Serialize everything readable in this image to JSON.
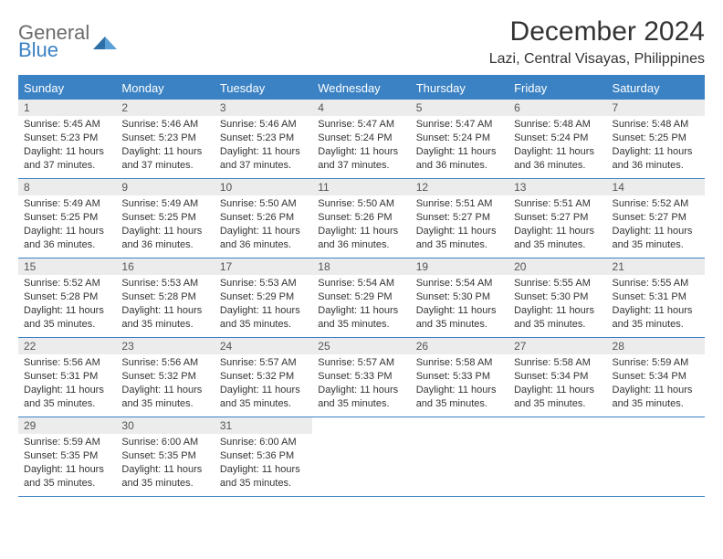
{
  "brand": {
    "general": "General",
    "blue": "Blue"
  },
  "title": "December 2024",
  "location": "Lazi, Central Visayas, Philippines",
  "weekday_header_bg": "#3b82c4",
  "border_color": "#3b82c4",
  "daynum_bg": "#ececec",
  "background": "#ffffff",
  "text_color": "#333333",
  "weekdays": [
    "Sunday",
    "Monday",
    "Tuesday",
    "Wednesday",
    "Thursday",
    "Friday",
    "Saturday"
  ],
  "weeks": [
    [
      {
        "n": "1",
        "sr": "Sunrise: 5:45 AM",
        "ss": "Sunset: 5:23 PM",
        "dl": "Daylight: 11 hours and 37 minutes."
      },
      {
        "n": "2",
        "sr": "Sunrise: 5:46 AM",
        "ss": "Sunset: 5:23 PM",
        "dl": "Daylight: 11 hours and 37 minutes."
      },
      {
        "n": "3",
        "sr": "Sunrise: 5:46 AM",
        "ss": "Sunset: 5:23 PM",
        "dl": "Daylight: 11 hours and 37 minutes."
      },
      {
        "n": "4",
        "sr": "Sunrise: 5:47 AM",
        "ss": "Sunset: 5:24 PM",
        "dl": "Daylight: 11 hours and 37 minutes."
      },
      {
        "n": "5",
        "sr": "Sunrise: 5:47 AM",
        "ss": "Sunset: 5:24 PM",
        "dl": "Daylight: 11 hours and 36 minutes."
      },
      {
        "n": "6",
        "sr": "Sunrise: 5:48 AM",
        "ss": "Sunset: 5:24 PM",
        "dl": "Daylight: 11 hours and 36 minutes."
      },
      {
        "n": "7",
        "sr": "Sunrise: 5:48 AM",
        "ss": "Sunset: 5:25 PM",
        "dl": "Daylight: 11 hours and 36 minutes."
      }
    ],
    [
      {
        "n": "8",
        "sr": "Sunrise: 5:49 AM",
        "ss": "Sunset: 5:25 PM",
        "dl": "Daylight: 11 hours and 36 minutes."
      },
      {
        "n": "9",
        "sr": "Sunrise: 5:49 AM",
        "ss": "Sunset: 5:25 PM",
        "dl": "Daylight: 11 hours and 36 minutes."
      },
      {
        "n": "10",
        "sr": "Sunrise: 5:50 AM",
        "ss": "Sunset: 5:26 PM",
        "dl": "Daylight: 11 hours and 36 minutes."
      },
      {
        "n": "11",
        "sr": "Sunrise: 5:50 AM",
        "ss": "Sunset: 5:26 PM",
        "dl": "Daylight: 11 hours and 36 minutes."
      },
      {
        "n": "12",
        "sr": "Sunrise: 5:51 AM",
        "ss": "Sunset: 5:27 PM",
        "dl": "Daylight: 11 hours and 35 minutes."
      },
      {
        "n": "13",
        "sr": "Sunrise: 5:51 AM",
        "ss": "Sunset: 5:27 PM",
        "dl": "Daylight: 11 hours and 35 minutes."
      },
      {
        "n": "14",
        "sr": "Sunrise: 5:52 AM",
        "ss": "Sunset: 5:27 PM",
        "dl": "Daylight: 11 hours and 35 minutes."
      }
    ],
    [
      {
        "n": "15",
        "sr": "Sunrise: 5:52 AM",
        "ss": "Sunset: 5:28 PM",
        "dl": "Daylight: 11 hours and 35 minutes."
      },
      {
        "n": "16",
        "sr": "Sunrise: 5:53 AM",
        "ss": "Sunset: 5:28 PM",
        "dl": "Daylight: 11 hours and 35 minutes."
      },
      {
        "n": "17",
        "sr": "Sunrise: 5:53 AM",
        "ss": "Sunset: 5:29 PM",
        "dl": "Daylight: 11 hours and 35 minutes."
      },
      {
        "n": "18",
        "sr": "Sunrise: 5:54 AM",
        "ss": "Sunset: 5:29 PM",
        "dl": "Daylight: 11 hours and 35 minutes."
      },
      {
        "n": "19",
        "sr": "Sunrise: 5:54 AM",
        "ss": "Sunset: 5:30 PM",
        "dl": "Daylight: 11 hours and 35 minutes."
      },
      {
        "n": "20",
        "sr": "Sunrise: 5:55 AM",
        "ss": "Sunset: 5:30 PM",
        "dl": "Daylight: 11 hours and 35 minutes."
      },
      {
        "n": "21",
        "sr": "Sunrise: 5:55 AM",
        "ss": "Sunset: 5:31 PM",
        "dl": "Daylight: 11 hours and 35 minutes."
      }
    ],
    [
      {
        "n": "22",
        "sr": "Sunrise: 5:56 AM",
        "ss": "Sunset: 5:31 PM",
        "dl": "Daylight: 11 hours and 35 minutes."
      },
      {
        "n": "23",
        "sr": "Sunrise: 5:56 AM",
        "ss": "Sunset: 5:32 PM",
        "dl": "Daylight: 11 hours and 35 minutes."
      },
      {
        "n": "24",
        "sr": "Sunrise: 5:57 AM",
        "ss": "Sunset: 5:32 PM",
        "dl": "Daylight: 11 hours and 35 minutes."
      },
      {
        "n": "25",
        "sr": "Sunrise: 5:57 AM",
        "ss": "Sunset: 5:33 PM",
        "dl": "Daylight: 11 hours and 35 minutes."
      },
      {
        "n": "26",
        "sr": "Sunrise: 5:58 AM",
        "ss": "Sunset: 5:33 PM",
        "dl": "Daylight: 11 hours and 35 minutes."
      },
      {
        "n": "27",
        "sr": "Sunrise: 5:58 AM",
        "ss": "Sunset: 5:34 PM",
        "dl": "Daylight: 11 hours and 35 minutes."
      },
      {
        "n": "28",
        "sr": "Sunrise: 5:59 AM",
        "ss": "Sunset: 5:34 PM",
        "dl": "Daylight: 11 hours and 35 minutes."
      }
    ],
    [
      {
        "n": "29",
        "sr": "Sunrise: 5:59 AM",
        "ss": "Sunset: 5:35 PM",
        "dl": "Daylight: 11 hours and 35 minutes."
      },
      {
        "n": "30",
        "sr": "Sunrise: 6:00 AM",
        "ss": "Sunset: 5:35 PM",
        "dl": "Daylight: 11 hours and 35 minutes."
      },
      {
        "n": "31",
        "sr": "Sunrise: 6:00 AM",
        "ss": "Sunset: 5:36 PM",
        "dl": "Daylight: 11 hours and 35 minutes."
      },
      {
        "empty": true
      },
      {
        "empty": true
      },
      {
        "empty": true
      },
      {
        "empty": true
      }
    ]
  ]
}
